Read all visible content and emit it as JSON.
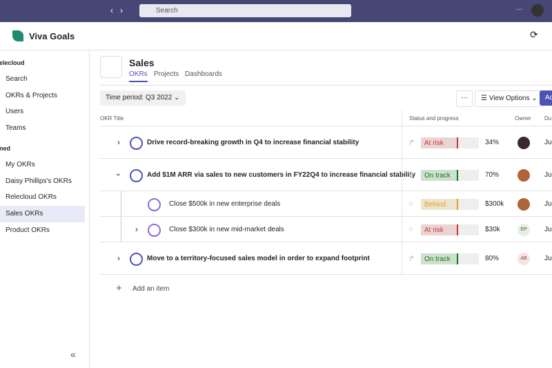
{
  "topbar": {
    "search_placeholder": "Search"
  },
  "app": {
    "name": "Viva Goals"
  },
  "sidebar": {
    "sections": [
      {
        "title": "elecloud",
        "items": [
          "Search",
          "OKRs & Projects",
          "Users",
          "Teams"
        ]
      },
      {
        "title": "ned",
        "items": [
          "My OKRs",
          "Daisy Phillips's OKRs",
          "Relecloud OKRs",
          "Sales OKRs",
          "Product OKRs"
        ]
      }
    ],
    "selected": "Sales OKRs"
  },
  "page": {
    "title": "Sales",
    "tabs": [
      "OKRs",
      "Projects",
      "Dashboards"
    ],
    "time_period": "Time period: Q3 2022",
    "view_options": "View Options",
    "add_button": "Ad"
  },
  "table": {
    "columns": [
      "OKR Title",
      "Status and progress",
      "Owner",
      "Du"
    ],
    "rows": [
      {
        "level": 0,
        "chevron": "right",
        "title": "Drive record-breaking growth in Q4 to increase financial stability",
        "status": "At risk",
        "status_color": "#d13438",
        "progress": "34%",
        "owner_color": "#3b2a2a",
        "due": "Ju"
      },
      {
        "level": 0,
        "chevron": "down",
        "title": "Add $1M ARR via sales to new customers in FY22Q4 to increase financial stability",
        "status": "On track",
        "status_color": "#107c10",
        "progress": "70%",
        "owner_color": "#b0643c",
        "due": "Ju"
      },
      {
        "level": 1,
        "chevron": null,
        "title": "Close $500k in new enterprise deals",
        "status": "Behind",
        "status_color": "#e3a21a",
        "progress": "$300k",
        "owner_color": "#b0643c",
        "due": "Ju"
      },
      {
        "level": 1,
        "chevron": "right",
        "title": "Close $300k in new mid-market deals",
        "status": "At risk",
        "status_color": "#d13438",
        "progress": "$30k",
        "owner_initials": "EP",
        "owner_color": "#e8efe0",
        "due": "Ju"
      },
      {
        "level": 0,
        "chevron": "right",
        "title": "Move to a territory-focused sales model in order to expand footprint",
        "status": "On track",
        "status_color": "#107c10",
        "progress": "80%",
        "owner_initials": "AB",
        "owner_color": "#fbe1dc",
        "due": "Ju"
      }
    ],
    "add_item": "Add an item"
  }
}
